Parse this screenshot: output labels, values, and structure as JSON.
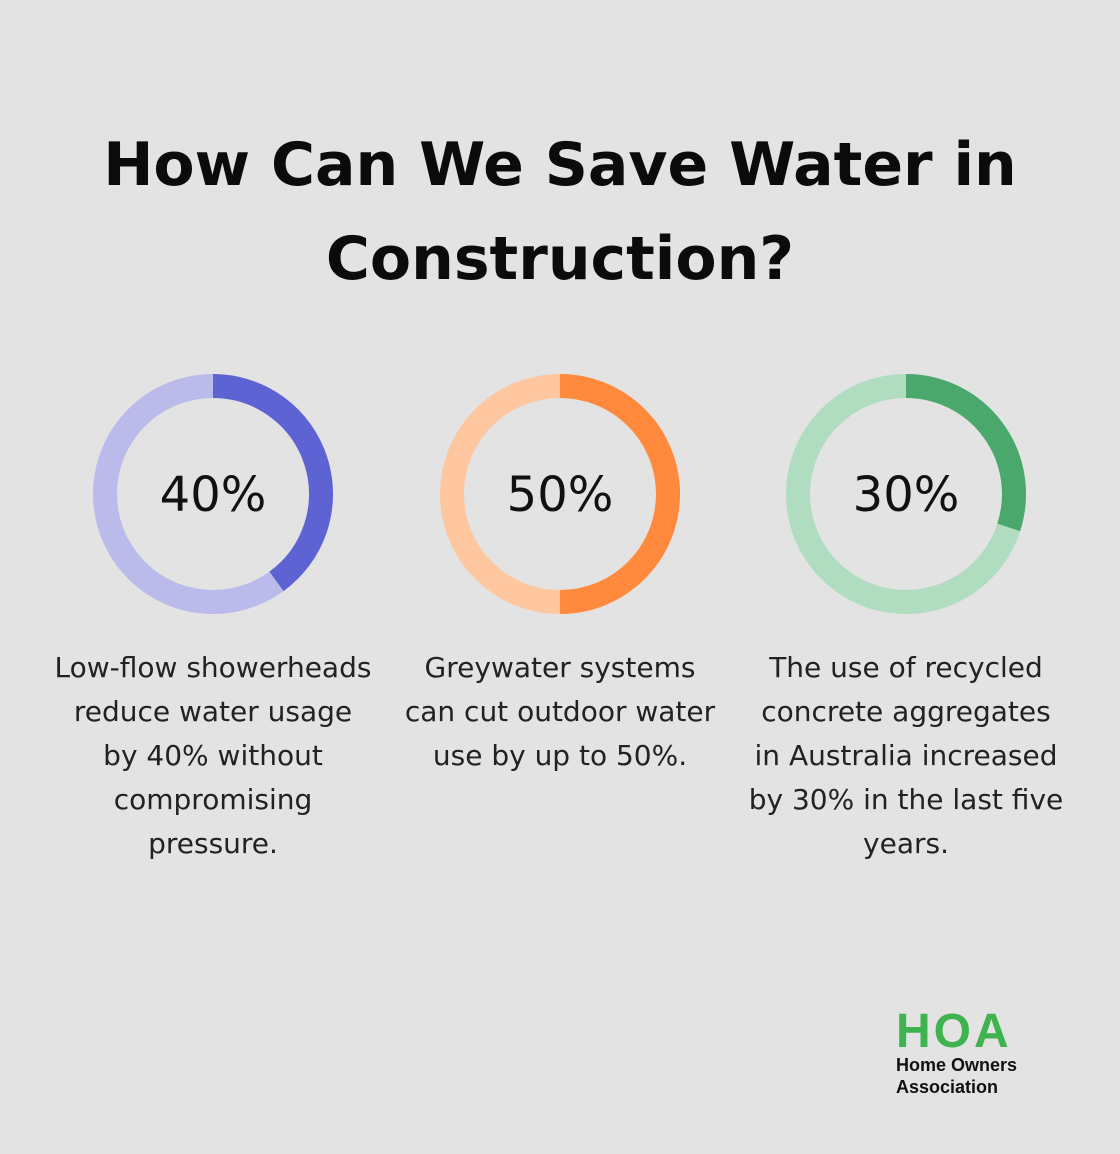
{
  "title": "How Can We Save Water in Construction?",
  "chart_data": {
    "type": "pie",
    "variant": "donut",
    "items": [
      {
        "value": 40,
        "label": "40%",
        "caption": "Low-flow showerheads reduce water usage by 40% without compromising pressure.",
        "color": "#5e63d3",
        "track_color": "#babbea"
      },
      {
        "value": 50,
        "label": "50%",
        "caption": "Greywater systems can cut outdoor water use by up to 50%.",
        "color": "#ff8a3d",
        "track_color": "#ffc79f"
      },
      {
        "value": 30,
        "label": "30%",
        "caption": "The use of recycled concrete aggregates in Australia increased by 30% in the last five years.",
        "color": "#4aa86c",
        "track_color": "#b0dcc0"
      }
    ]
  },
  "logo": {
    "mark": "HOA",
    "line1": "Home Owners",
    "line2": "Association",
    "color": "#3fb34f"
  }
}
